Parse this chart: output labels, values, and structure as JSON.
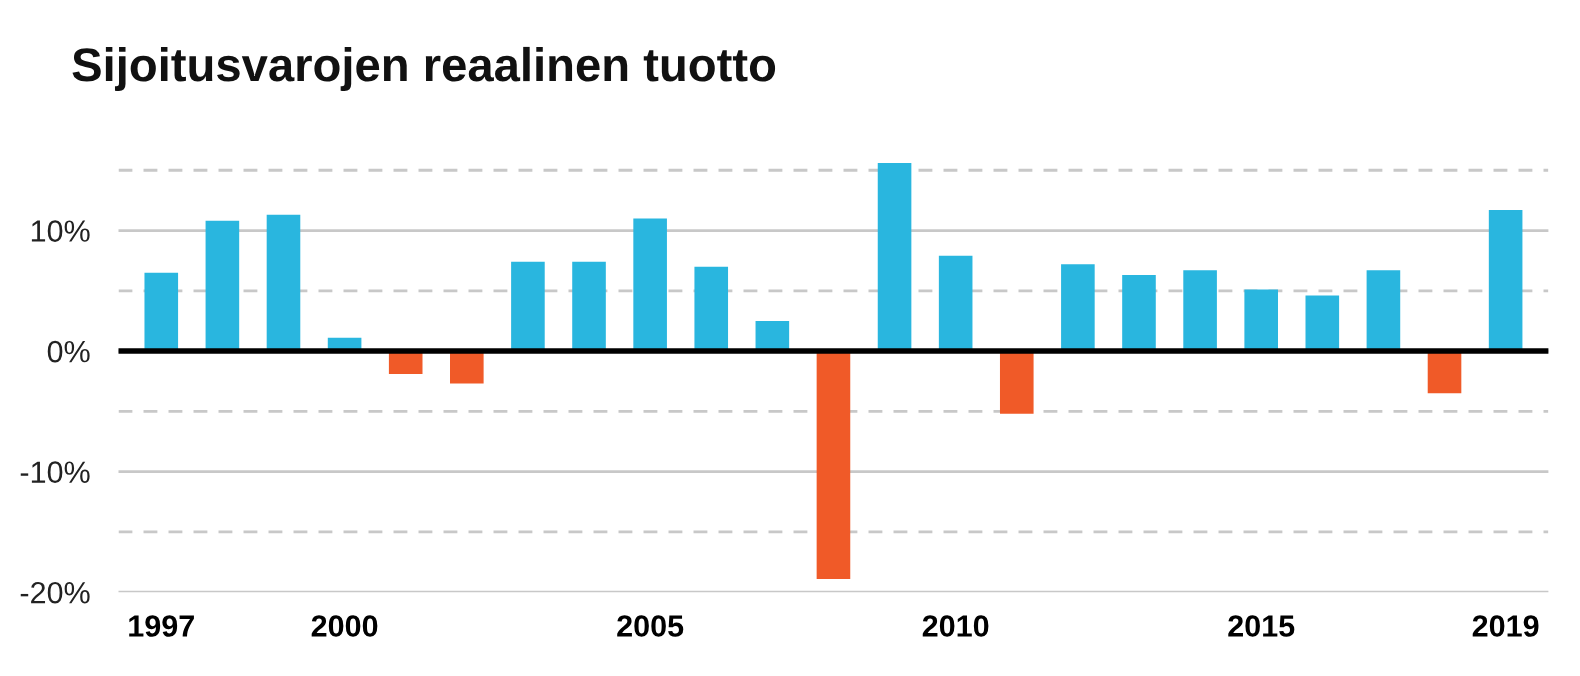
{
  "chart_data": {
    "type": "bar",
    "title": "Sijoitusvarojen reaalinen tuotto",
    "categories": [
      "1997",
      null,
      null,
      "2000",
      null,
      null,
      null,
      null,
      "2005",
      null,
      null,
      null,
      null,
      "2010",
      null,
      null,
      null,
      null,
      "2015",
      null,
      null,
      null,
      "2019"
    ],
    "values": [
      6.5,
      10.8,
      11.3,
      1.1,
      -1.9,
      -2.7,
      7.4,
      7.4,
      11.0,
      7.0,
      2.5,
      -18.9,
      15.6,
      7.9,
      -5.2,
      7.2,
      6.3,
      6.7,
      5.1,
      4.6,
      6.7,
      -3.5,
      11.7
    ],
    "colors": [
      "#29b6df",
      "#29b6df",
      "#29b6df",
      "#29b6df",
      "#f05a28",
      "#f05a28",
      "#29b6df",
      "#29b6df",
      "#29b6df",
      "#29b6df",
      "#29b6df",
      "#f05a28",
      "#29b6df",
      "#29b6df",
      "#f05a28",
      "#29b6df",
      "#29b6df",
      "#29b6df",
      "#29b6df",
      "#29b6df",
      "#29b6df",
      "#f05a28",
      "#29b6df"
    ],
    "ylim": [
      -20,
      16
    ],
    "yticks": [
      {
        "value": -20,
        "label": "-20%"
      },
      {
        "value": -15,
        "label": null
      },
      {
        "value": -10,
        "label": "-10%"
      },
      {
        "value": -5,
        "label": null
      },
      {
        "value": 0,
        "label": "0%"
      },
      {
        "value": 5,
        "label": null
      },
      {
        "value": 10,
        "label": "10%"
      },
      {
        "value": 15,
        "label": null
      }
    ],
    "grid": "y",
    "ref_lines": [
      {
        "axis": "y",
        "value": 0,
        "color": "#000000"
      }
    ]
  }
}
